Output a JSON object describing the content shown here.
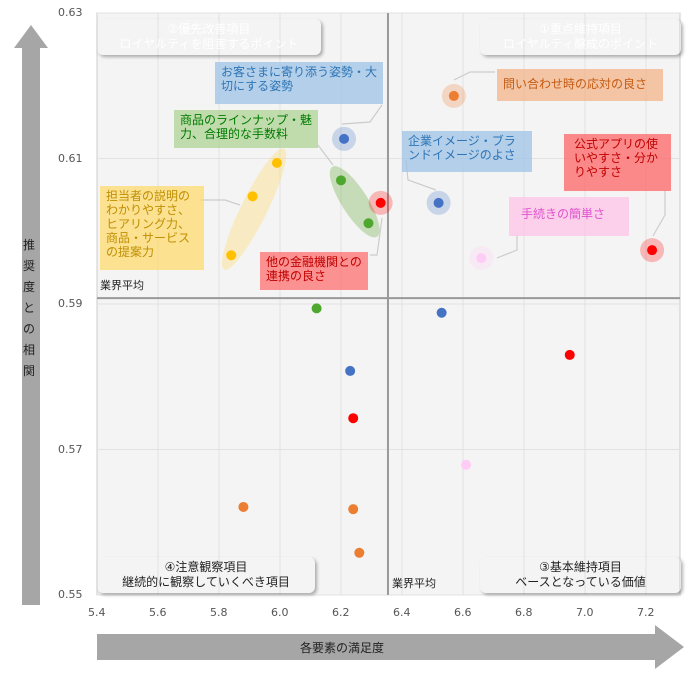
{
  "chart_data": {
    "type": "scatter",
    "xlabel": "各要素の満足度",
    "ylabel": "推奨度との相関",
    "xlim": [
      5.4,
      7.3
    ],
    "ylim": [
      0.55,
      0.63
    ],
    "xticks": [
      "5.4",
      "5.6",
      "5.8",
      "6.0",
      "6.2",
      "6.4",
      "6.6",
      "6.8",
      "7.0",
      "7.2"
    ],
    "yticks": [
      "0.63",
      "0.61",
      "0.59",
      "0.57",
      "0.55"
    ],
    "grid": true,
    "average": {
      "x": 6.354,
      "y": 0.5908,
      "x_label": "業界平均",
      "y_label": "業界平均"
    },
    "quadrants": [
      {
        "line1": "②優先改善項目",
        "line2": "ロイヤルティを阻害するポイント",
        "color": "#b5573a"
      },
      {
        "line1": "①重点維持項目",
        "line2": "ロイヤルティ醸成のポイント",
        "color": "#77933c"
      },
      {
        "line1": "④注意観察項目",
        "line2": "継続的に観察していくべき項目",
        "color": "#d9d9d9"
      },
      {
        "line1": "③基本維持項目",
        "line2": "ベースとなっている価値",
        "color": "#d9d9d9"
      }
    ],
    "annotations": [
      {
        "text": "お客さまに寄り添う姿勢・大切にする姿勢",
        "color": "#2e75b6"
      },
      {
        "text": "商品のラインナップ・魅力、合理的な手数料",
        "color": "#007a00"
      },
      {
        "text": "担当者の説明のわかりやすさ、ヒアリング力、商品・サービスの提案力",
        "color": "#bf8f00"
      },
      {
        "text": "他の金融機関との連携の良さ",
        "color": "#c00000"
      },
      {
        "text": "問い合わせ時の応対の良さ",
        "color": "#c55a11"
      },
      {
        "text": "企業イメージ・ブランドイメージのよさ",
        "color": "#2e75b6"
      },
      {
        "text": "公式アプリの使いやすさ・分かりやすさ",
        "color": "#c00000"
      },
      {
        "text": "手続きの簡単さ",
        "color": "#e052d0"
      }
    ],
    "points": [
      {
        "x": 6.21,
        "y": 0.6127,
        "color": "#4472c4",
        "halo": true
      },
      {
        "x": 6.57,
        "y": 0.6186,
        "color": "#ed7d31",
        "halo": true
      },
      {
        "x": 5.99,
        "y": 0.6094,
        "color": "#ffc000"
      },
      {
        "x": 5.91,
        "y": 0.6048,
        "color": "#ffc000"
      },
      {
        "x": 5.84,
        "y": 0.5967,
        "color": "#ffc000"
      },
      {
        "x": 6.2,
        "y": 0.607,
        "color": "#4ea72e"
      },
      {
        "x": 6.29,
        "y": 0.6011,
        "color": "#4ea72e"
      },
      {
        "x": 6.33,
        "y": 0.6039,
        "color": "#ff0000",
        "halo": true
      },
      {
        "x": 6.52,
        "y": 0.6039,
        "color": "#4472c4",
        "halo": true
      },
      {
        "x": 6.66,
        "y": 0.5963,
        "color": "#ffccf5",
        "halo": true
      },
      {
        "x": 7.22,
        "y": 0.5974,
        "color": "#ff0000",
        "halo": true
      },
      {
        "x": 6.12,
        "y": 0.5894,
        "color": "#4ea72e"
      },
      {
        "x": 6.53,
        "y": 0.5888,
        "color": "#4472c4"
      },
      {
        "x": 6.95,
        "y": 0.583,
        "color": "#ff0000"
      },
      {
        "x": 6.23,
        "y": 0.5808,
        "color": "#4472c4"
      },
      {
        "x": 6.24,
        "y": 0.5743,
        "color": "#ff0000"
      },
      {
        "x": 6.61,
        "y": 0.5679,
        "color": "#ffccf5"
      },
      {
        "x": 5.88,
        "y": 0.5621,
        "color": "#ed7d31"
      },
      {
        "x": 6.24,
        "y": 0.5618,
        "color": "#ed7d31"
      },
      {
        "x": 6.26,
        "y": 0.5558,
        "color": "#ed7d31"
      }
    ]
  }
}
